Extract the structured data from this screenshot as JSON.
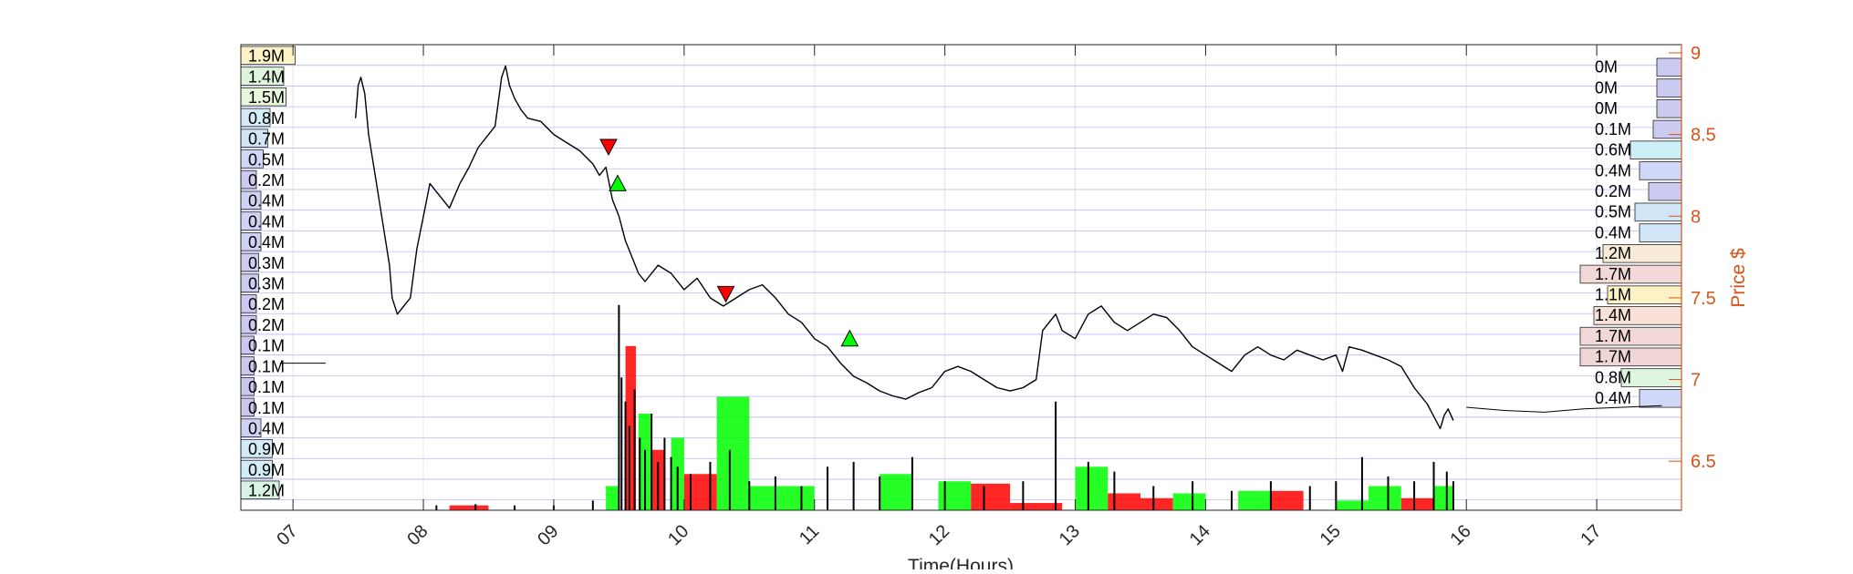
{
  "chart_data": {
    "type": "line",
    "title": "",
    "xlabel": "Time(Hours)",
    "ylabel": "Price $",
    "xlim": [
      6.6,
      17.65
    ],
    "ylim": [
      6.2,
      9.05
    ],
    "x_ticks": [
      {
        "value": 7,
        "label": "07"
      },
      {
        "value": 8,
        "label": "08"
      },
      {
        "value": 9,
        "label": "09"
      },
      {
        "value": 10,
        "label": "10"
      },
      {
        "value": 11,
        "label": "11"
      },
      {
        "value": 12,
        "label": "12"
      },
      {
        "value": 13,
        "label": "13"
      },
      {
        "value": 14,
        "label": "14"
      },
      {
        "value": 15,
        "label": "15"
      },
      {
        "value": 16,
        "label": "16"
      },
      {
        "value": 17,
        "label": "17"
      }
    ],
    "y_ticks": [
      {
        "value": 6.5,
        "label": "6.5"
      },
      {
        "value": 7,
        "label": "7"
      },
      {
        "value": 7.5,
        "label": "7.5"
      },
      {
        "value": 8,
        "label": "8"
      },
      {
        "value": 8.5,
        "label": "8.5"
      },
      {
        "value": 9,
        "label": "9"
      }
    ],
    "grid": true,
    "colors": {
      "axis_right": "#d95319",
      "price": "#000000",
      "buy": "#00ff00",
      "sell": "#ff0000",
      "volume_bar": "#000000",
      "band_line": "#8080ff"
    },
    "price_series": {
      "x": [
        7.48,
        7.5,
        7.52,
        7.55,
        7.58,
        7.62,
        7.66,
        7.7,
        7.74,
        7.76,
        7.8,
        7.85,
        7.9,
        7.95,
        8.0,
        8.05,
        8.1,
        8.15,
        8.2,
        8.28,
        8.35,
        8.42,
        8.5,
        8.55,
        8.6,
        8.63,
        8.66,
        8.7,
        8.75,
        8.8,
        8.9,
        9.0,
        9.1,
        9.2,
        9.3,
        9.35,
        9.4,
        9.45,
        9.5,
        9.55,
        9.6,
        9.65,
        9.7,
        9.8,
        9.9,
        10.0,
        10.1,
        10.2,
        10.3,
        10.4,
        10.5,
        10.6,
        10.7,
        10.8,
        10.9,
        11.0,
        11.1,
        11.2,
        11.3,
        11.4,
        11.5,
        11.6,
        11.7,
        11.8,
        11.9,
        12.0,
        12.1,
        12.2,
        12.3,
        12.4,
        12.5,
        12.6,
        12.7,
        12.75,
        12.8,
        12.85,
        12.9,
        13.0,
        13.1,
        13.2,
        13.3,
        13.4,
        13.5,
        13.6,
        13.7,
        13.8,
        13.9,
        14.0,
        14.1,
        14.2,
        14.3,
        14.4,
        14.5,
        14.6,
        14.7,
        14.8,
        14.9,
        15.0,
        15.05,
        15.1,
        15.2,
        15.3,
        15.4,
        15.5,
        15.6,
        15.7,
        15.8,
        15.83,
        15.86,
        15.9
      ],
      "y": [
        8.6,
        8.8,
        8.85,
        8.75,
        8.5,
        8.3,
        8.1,
        7.9,
        7.7,
        7.5,
        7.4,
        7.45,
        7.5,
        7.8,
        8.0,
        8.2,
        8.15,
        8.1,
        8.05,
        8.2,
        8.3,
        8.42,
        8.5,
        8.55,
        8.85,
        8.92,
        8.8,
        8.72,
        8.65,
        8.6,
        8.58,
        8.5,
        8.45,
        8.4,
        8.32,
        8.25,
        8.3,
        8.1,
        8.0,
        7.85,
        7.75,
        7.65,
        7.6,
        7.7,
        7.65,
        7.55,
        7.62,
        7.5,
        7.45,
        7.5,
        7.55,
        7.58,
        7.5,
        7.4,
        7.35,
        7.25,
        7.2,
        7.1,
        7.02,
        6.98,
        6.93,
        6.9,
        6.88,
        6.92,
        6.95,
        7.05,
        7.08,
        7.05,
        7.0,
        6.95,
        6.93,
        6.95,
        7.0,
        7.3,
        7.35,
        7.4,
        7.3,
        7.25,
        7.4,
        7.45,
        7.35,
        7.3,
        7.35,
        7.4,
        7.38,
        7.3,
        7.2,
        7.15,
        7.1,
        7.05,
        7.15,
        7.2,
        7.15,
        7.12,
        7.18,
        7.15,
        7.12,
        7.15,
        7.05,
        7.2,
        7.18,
        7.15,
        7.12,
        7.08,
        6.95,
        6.85,
        6.7,
        6.78,
        6.82,
        6.75
      ]
    },
    "tail_series": {
      "x": [
        16.0,
        16.3,
        16.6,
        16.9,
        17.2,
        17.5
      ],
      "y": [
        6.83,
        6.81,
        6.8,
        6.82,
        6.83,
        6.84
      ]
    },
    "pre_series": {
      "x": [
        6.9,
        7.25
      ],
      "y": [
        7.1,
        7.1
      ]
    },
    "sell_markers": [
      {
        "x": 9.42,
        "y": 8.42
      },
      {
        "x": 10.32,
        "y": 7.52
      }
    ],
    "buy_markers": [
      {
        "x": 9.49,
        "y": 8.2
      },
      {
        "x": 11.27,
        "y": 7.25
      }
    ],
    "volume_spikes": [
      {
        "x": 9.5,
        "v": 0.85
      },
      {
        "x": 9.52,
        "v": 0.55
      },
      {
        "x": 9.55,
        "v": 0.45
      },
      {
        "x": 9.58,
        "v": 0.35
      },
      {
        "x": 9.62,
        "v": 0.5
      },
      {
        "x": 9.66,
        "v": 0.3
      },
      {
        "x": 9.7,
        "v": 0.25
      },
      {
        "x": 9.75,
        "v": 0.4
      },
      {
        "x": 9.8,
        "v": 0.2
      },
      {
        "x": 9.85,
        "v": 0.3
      },
      {
        "x": 9.9,
        "v": 0.22
      },
      {
        "x": 9.95,
        "v": 0.18
      },
      {
        "x": 10.05,
        "v": 0.15
      },
      {
        "x": 10.2,
        "v": 0.2
      },
      {
        "x": 10.35,
        "v": 0.25
      },
      {
        "x": 10.5,
        "v": 0.12
      },
      {
        "x": 10.7,
        "v": 0.14
      },
      {
        "x": 10.9,
        "v": 0.1
      },
      {
        "x": 11.1,
        "v": 0.18
      },
      {
        "x": 11.3,
        "v": 0.2
      },
      {
        "x": 11.5,
        "v": 0.14
      },
      {
        "x": 11.75,
        "v": 0.22
      },
      {
        "x": 12.0,
        "v": 0.12
      },
      {
        "x": 12.3,
        "v": 0.1
      },
      {
        "x": 12.6,
        "v": 0.12
      },
      {
        "x": 12.85,
        "v": 0.45
      },
      {
        "x": 13.1,
        "v": 0.2
      },
      {
        "x": 13.3,
        "v": 0.16
      },
      {
        "x": 13.6,
        "v": 0.1
      },
      {
        "x": 13.9,
        "v": 0.12
      },
      {
        "x": 14.2,
        "v": 0.08
      },
      {
        "x": 14.5,
        "v": 0.12
      },
      {
        "x": 14.8,
        "v": 0.1
      },
      {
        "x": 15.0,
        "v": 0.12
      },
      {
        "x": 15.2,
        "v": 0.22
      },
      {
        "x": 15.4,
        "v": 0.14
      },
      {
        "x": 15.6,
        "v": 0.12
      },
      {
        "x": 15.75,
        "v": 0.2
      },
      {
        "x": 15.85,
        "v": 0.16
      },
      {
        "x": 15.9,
        "v": 0.12
      },
      {
        "x": 8.1,
        "v": 0.02
      },
      {
        "x": 8.4,
        "v": 0.025
      },
      {
        "x": 8.7,
        "v": 0.02
      },
      {
        "x": 9.0,
        "v": 0.02
      },
      {
        "x": 9.3,
        "v": 0.04
      }
    ],
    "activity_blocks": [
      {
        "x0": 8.2,
        "x1": 8.5,
        "v": 0.02,
        "side": "sell"
      },
      {
        "x0": 9.4,
        "x1": 9.5,
        "v": 0.1,
        "side": "buy"
      },
      {
        "x0": 9.55,
        "x1": 9.63,
        "v": 0.68,
        "side": "sell"
      },
      {
        "x0": 9.65,
        "x1": 9.75,
        "v": 0.4,
        "side": "buy"
      },
      {
        "x0": 9.75,
        "x1": 9.85,
        "v": 0.25,
        "side": "sell"
      },
      {
        "x0": 9.9,
        "x1": 10.0,
        "v": 0.3,
        "side": "buy"
      },
      {
        "x0": 10.0,
        "x1": 10.25,
        "v": 0.15,
        "side": "sell"
      },
      {
        "x0": 10.25,
        "x1": 10.5,
        "v": 0.47,
        "side": "buy"
      },
      {
        "x0": 10.5,
        "x1": 11.0,
        "v": 0.1,
        "side": "buy"
      },
      {
        "x0": 11.5,
        "x1": 11.75,
        "v": 0.15,
        "side": "buy"
      },
      {
        "x0": 11.95,
        "x1": 12.2,
        "v": 0.12,
        "side": "buy"
      },
      {
        "x0": 12.2,
        "x1": 12.5,
        "v": 0.11,
        "side": "sell"
      },
      {
        "x0": 12.5,
        "x1": 12.9,
        "v": 0.03,
        "side": "sell"
      },
      {
        "x0": 13.0,
        "x1": 13.25,
        "v": 0.18,
        "side": "buy"
      },
      {
        "x0": 13.25,
        "x1": 13.5,
        "v": 0.07,
        "side": "sell"
      },
      {
        "x0": 13.5,
        "x1": 13.75,
        "v": 0.05,
        "side": "sell"
      },
      {
        "x0": 13.75,
        "x1": 14.0,
        "v": 0.07,
        "side": "buy"
      },
      {
        "x0": 14.25,
        "x1": 14.5,
        "v": 0.08,
        "side": "buy"
      },
      {
        "x0": 14.5,
        "x1": 14.75,
        "v": 0.08,
        "side": "sell"
      },
      {
        "x0": 15.0,
        "x1": 15.25,
        "v": 0.04,
        "side": "buy"
      },
      {
        "x0": 15.25,
        "x1": 15.5,
        "v": 0.1,
        "side": "buy"
      },
      {
        "x0": 15.5,
        "x1": 15.75,
        "v": 0.05,
        "side": "sell"
      },
      {
        "x0": 15.75,
        "x1": 15.9,
        "v": 0.1,
        "side": "buy"
      }
    ],
    "volume_profile_left": [
      {
        "label": "1.9M",
        "value": 1.9,
        "color": "#fbf3c5"
      },
      {
        "label": "1.4M",
        "value": 1.4,
        "color": "#def5dc"
      },
      {
        "label": "1.5M",
        "value": 1.5,
        "color": "#e7f7da"
      },
      {
        "label": "0.8M",
        "value": 0.8,
        "color": "#d3ecf6"
      },
      {
        "label": "0.7M",
        "value": 0.7,
        "color": "#d0e6f7"
      },
      {
        "label": "0.5M",
        "value": 0.5,
        "color": "#d0d8f7"
      },
      {
        "label": "0.2M",
        "value": 0.2,
        "color": "#cbcaf0"
      },
      {
        "label": "0.4M",
        "value": 0.4,
        "color": "#d0d2f3"
      },
      {
        "label": "0.4M",
        "value": 0.4,
        "color": "#d0d2f3"
      },
      {
        "label": "0.4M",
        "value": 0.4,
        "color": "#d0d2f3"
      },
      {
        "label": "0.3M",
        "value": 0.3,
        "color": "#cdcdf2"
      },
      {
        "label": "0.3M",
        "value": 0.3,
        "color": "#cdcdf2"
      },
      {
        "label": "0.2M",
        "value": 0.2,
        "color": "#cbcaf0"
      },
      {
        "label": "0.2M",
        "value": 0.2,
        "color": "#cbcaf0"
      },
      {
        "label": "0.1M",
        "value": 0.1,
        "color": "#c9c8ee"
      },
      {
        "label": "0.1M",
        "value": 0.1,
        "color": "#c9c8ee"
      },
      {
        "label": "0.1M",
        "value": 0.1,
        "color": "#c9c8ee"
      },
      {
        "label": "0.1M",
        "value": 0.1,
        "color": "#c9c8ee"
      },
      {
        "label": "0.4M",
        "value": 0.4,
        "color": "#d0d2f3"
      },
      {
        "label": "0.9M",
        "value": 0.9,
        "color": "#d3ecf6"
      },
      {
        "label": "0.9M",
        "value": 0.9,
        "color": "#d3ecf6"
      },
      {
        "label": "1.2M",
        "value": 1.2,
        "color": "#d8f3e6"
      }
    ],
    "volume_profile_right": [
      {
        "label": "0M",
        "value": 0.02,
        "color": "#cbcaf0"
      },
      {
        "label": "0M",
        "value": 0.02,
        "color": "#cbcaf0"
      },
      {
        "label": "0M",
        "value": 0.02,
        "color": "#cbcaf0"
      },
      {
        "label": "0.1M",
        "value": 0.1,
        "color": "#cbcaf0"
      },
      {
        "label": "0.6M",
        "value": 0.6,
        "color": "#cdf0f8"
      },
      {
        "label": "0.4M",
        "value": 0.4,
        "color": "#d0d8f7"
      },
      {
        "label": "0.2M",
        "value": 0.2,
        "color": "#cbcaf0"
      },
      {
        "label": "0.5M",
        "value": 0.5,
        "color": "#d0e6f7"
      },
      {
        "label": "0.4M",
        "value": 0.4,
        "color": "#d0e6f7"
      },
      {
        "label": "1.2M",
        "value": 1.2,
        "color": "#f8ecd8"
      },
      {
        "label": "1.7M",
        "value": 1.7,
        "color": "#f3d8d8"
      },
      {
        "label": "1.1M",
        "value": 1.1,
        "color": "#fbf3c5"
      },
      {
        "label": "1.4M",
        "value": 1.4,
        "color": "#f8e2d8"
      },
      {
        "label": "1.7M",
        "value": 1.7,
        "color": "#f3d8d8"
      },
      {
        "label": "1.7M",
        "value": 1.7,
        "color": "#f0d5d5"
      },
      {
        "label": "0.8M",
        "value": 0.8,
        "color": "#dff5df"
      },
      {
        "label": "0.4M",
        "value": 0.4,
        "color": "#d0d8f7"
      }
    ]
  }
}
